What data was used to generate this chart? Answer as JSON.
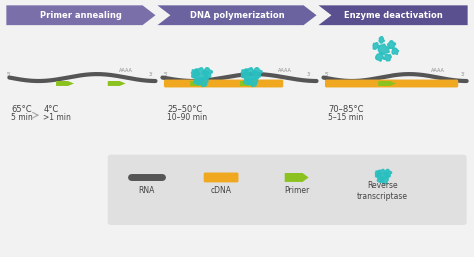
{
  "bg_color": "#f2f2f2",
  "banner_colors": [
    "#7b6faa",
    "#6b63a0",
    "#5a508f"
  ],
  "banner_labels": [
    "Primer annealing",
    "DNA polymerization",
    "Enzyme deactivation"
  ],
  "rna_color": "#555555",
  "cdna_color": "#f0a820",
  "primer_color": "#8cc220",
  "enzyme_color": "#2abfbf",
  "legend_bg": "#e0e0e0",
  "text_color": "#444444",
  "small_text_color": "#888888",
  "step1_temp": "65°C",
  "step1_temp2": "4°C",
  "step1_time": "5 min",
  "step1_time2": ">1 min",
  "step2_temp": "25–50°C",
  "step2_time": "10–90 min",
  "step3_temp": "70–85°C",
  "step3_time": "5–15 min",
  "white": "#ffffff"
}
